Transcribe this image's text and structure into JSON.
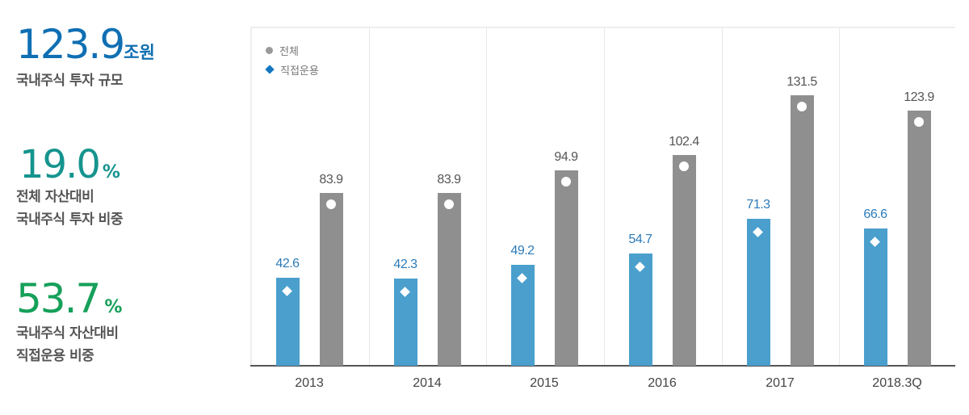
{
  "kpis": [
    {
      "value": "123.9",
      "unit": "조원",
      "desc_lines": [
        "국내주식 투자 규모"
      ],
      "color": "#0f6fb3"
    },
    {
      "value": "19.0",
      "unit": "%",
      "desc_lines": [
        "전체 자산대비",
        "국내주식 투자 비중"
      ],
      "color": "#16948e"
    },
    {
      "value": "53.7",
      "unit": "%",
      "desc_lines": [
        "국내주식 자산대비",
        "직접운용 비중"
      ],
      "color": "#16a05a"
    }
  ],
  "legend": {
    "total_label": "전체",
    "direct_label": "직접운용"
  },
  "colors": {
    "total_bar": "#8f8f8f",
    "direct_bar": "#4a9fcd",
    "direct_label": "#2b7ab8",
    "direct_legend_marker": "#1376c0"
  },
  "chart_data": {
    "type": "bar",
    "title": "",
    "xlabel": "",
    "ylabel": "",
    "categories": [
      "2013",
      "2014",
      "2015",
      "2016",
      "2017",
      "2018.3Q"
    ],
    "series": [
      {
        "name": "직접운용",
        "values": [
          42.6,
          42.3,
          49.2,
          54.7,
          71.3,
          66.6
        ],
        "color": "#4a9fcd",
        "marker": "diamond"
      },
      {
        "name": "전체",
        "values": [
          83.9,
          83.9,
          94.9,
          102.4,
          131.5,
          123.9
        ],
        "color": "#8f8f8f",
        "marker": "circle"
      }
    ],
    "value_labels": {
      "direct": [
        "42.6",
        "42.3",
        "49.2",
        "54.7",
        "71.3",
        "66.6"
      ],
      "total": [
        "83.9",
        "83.9",
        "94.9",
        "102.4",
        "131.5",
        "123.9"
      ]
    },
    "ylim": [
      0,
      160
    ],
    "grid": false,
    "legend_position": "top-left",
    "units": "조원"
  }
}
